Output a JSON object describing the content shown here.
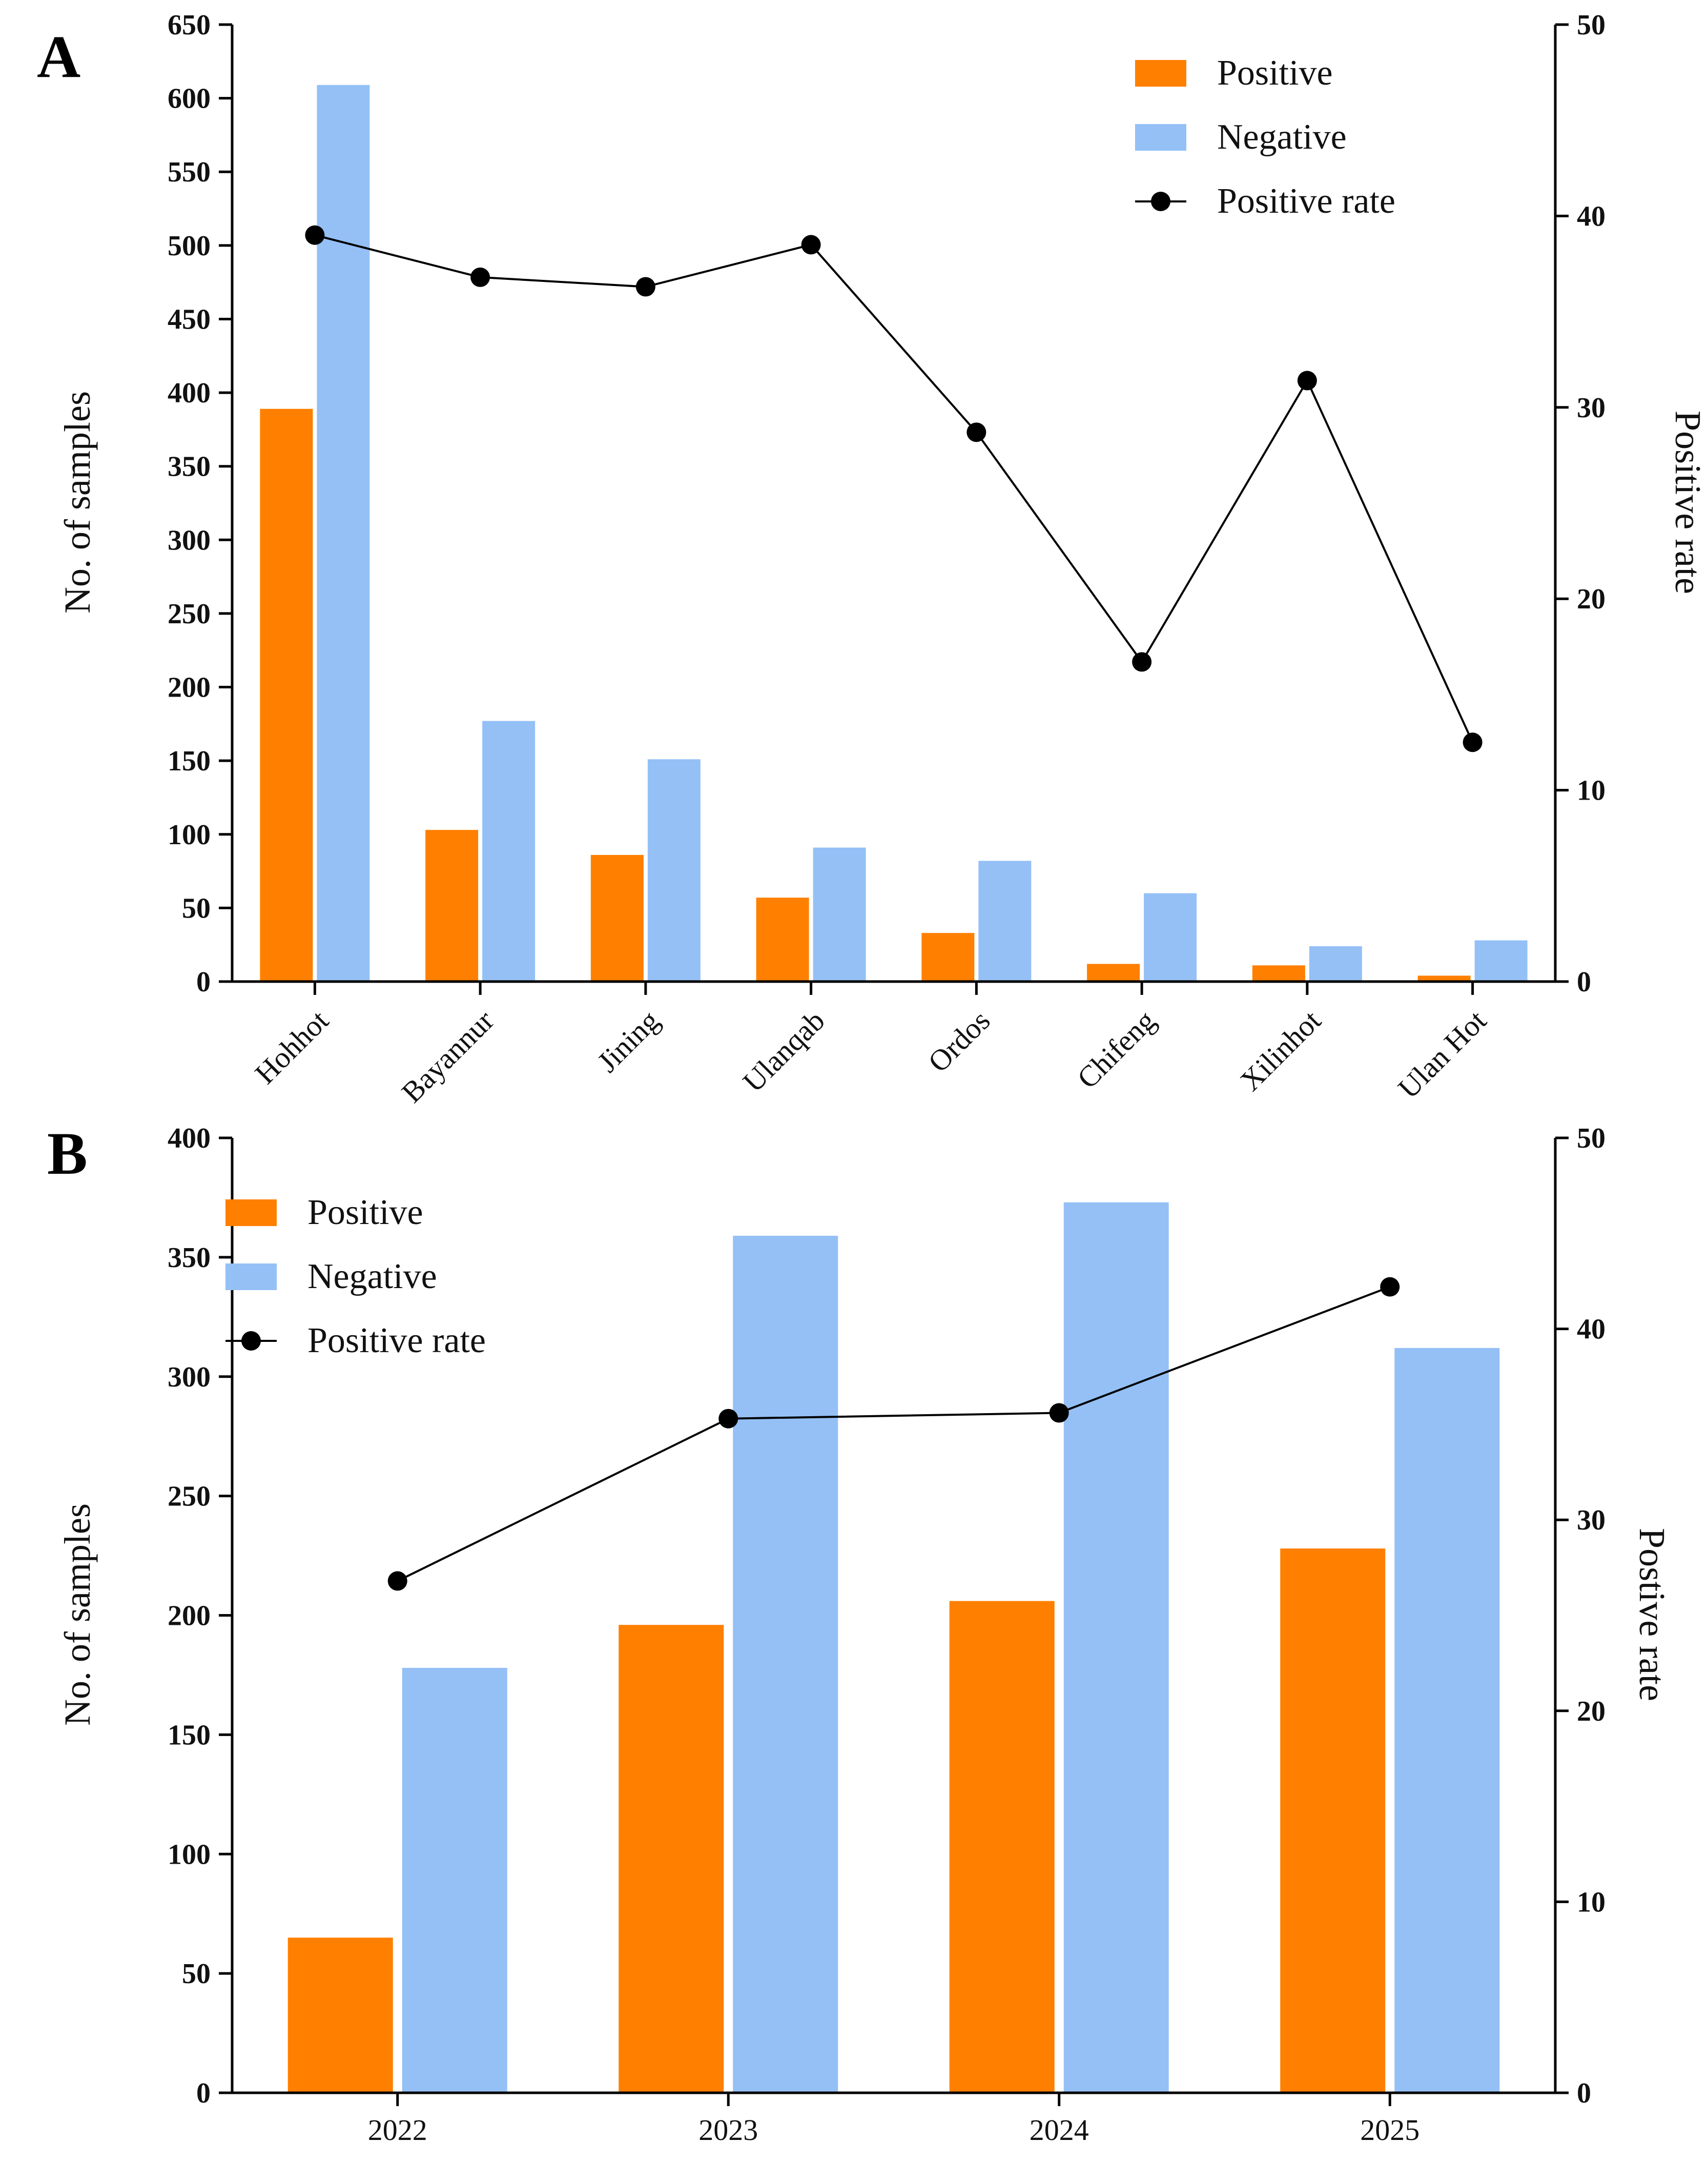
{
  "colors": {
    "positive": "#FF7F00",
    "negative": "#94C0F6",
    "rate": "#000000",
    "axis": "#000000"
  },
  "chart_data": [
    {
      "panel_label": "A",
      "type": "bar",
      "categories": [
        "Hohhot",
        "Bayannur",
        "Jining",
        "Ulanqab",
        "Ordos",
        "Chifeng",
        "Xilinhot",
        "Ulan Hot"
      ],
      "series": [
        {
          "name": "Positive",
          "type": "bar",
          "axis": "left",
          "values": [
            389,
            103,
            86,
            57,
            33,
            12,
            11,
            4
          ]
        },
        {
          "name": "Negative",
          "type": "bar",
          "axis": "left",
          "values": [
            609,
            177,
            151,
            91,
            82,
            60,
            24,
            28
          ]
        },
        {
          "name": "Positive rate",
          "type": "line",
          "axis": "right",
          "values": [
            39.0,
            36.8,
            36.3,
            38.5,
            28.7,
            16.7,
            31.4,
            12.5
          ]
        }
      ],
      "legend": [
        "Positive",
        "Negative",
        "Positive rate"
      ],
      "legend_position": "top-right",
      "ylabel": "No. of samples",
      "ylabel_right": "Positive rate",
      "ylim": [
        0,
        650
      ],
      "yticks": [
        "0",
        "50",
        "100",
        "150",
        "200",
        "250",
        "300",
        "350",
        "400",
        "450",
        "500",
        "550",
        "600",
        "650"
      ],
      "ylim_right": [
        0,
        50
      ],
      "yticks_right": [
        "0",
        "10",
        "20",
        "30",
        "40",
        "50"
      ],
      "xlabel_rotated": true
    },
    {
      "panel_label": "B",
      "type": "bar",
      "categories": [
        "2022",
        "2023",
        "2024",
        "2025"
      ],
      "series": [
        {
          "name": "Positive",
          "type": "bar",
          "axis": "left",
          "values": [
            65,
            196,
            206,
            228
          ]
        },
        {
          "name": "Negative",
          "type": "bar",
          "axis": "left",
          "values": [
            178,
            359,
            373,
            312
          ]
        },
        {
          "name": "Positive rate",
          "type": "line",
          "axis": "right",
          "values": [
            26.8,
            35.3,
            35.6,
            42.2
          ]
        }
      ],
      "legend": [
        "Positive",
        "Negative",
        "Positive rate"
      ],
      "legend_position": "top-left",
      "ylabel": "No. of samples",
      "ylabel_right": "Postive rate",
      "ylim": [
        0,
        400
      ],
      "yticks": [
        "0",
        "50",
        "100",
        "150",
        "200",
        "250",
        "300",
        "350",
        "400"
      ],
      "ylim_right": [
        0,
        50
      ],
      "yticks_right": [
        "0",
        "10",
        "20",
        "30",
        "40",
        "50"
      ],
      "xlabel_rotated": false
    }
  ]
}
